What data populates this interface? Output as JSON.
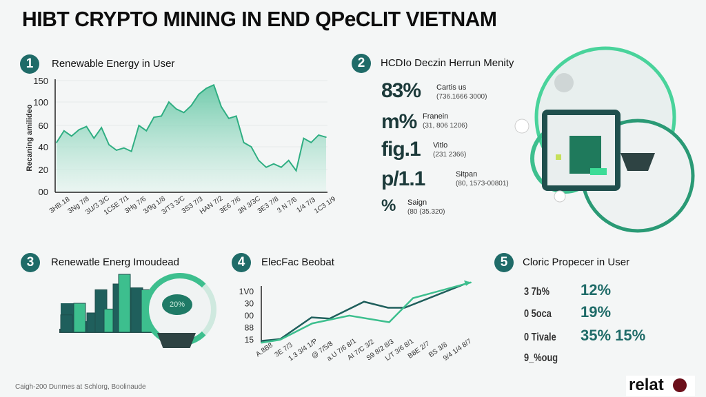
{
  "title": "HIBT CRYPTO MINING IN END QPeCLIT VIETNAM",
  "sections": [
    {
      "number": "1",
      "title": "Renewable Energy in User"
    },
    {
      "number": "2",
      "title": "HCDIo Deczin Herrun Menity"
    },
    {
      "number": "3",
      "title": "Renewatle Energ Imoudead"
    },
    {
      "number": "4",
      "title": "ElecFac Beobat"
    },
    {
      "number": "5",
      "title": "Cloric Propecer in User"
    }
  ],
  "stats": [
    {
      "value": "83%",
      "label": "Cartis us",
      "sub": "(736.1666 3000)"
    },
    {
      "value": "m%",
      "label": "Franein",
      "sub": "(31, 806 1206)"
    },
    {
      "value": "fig.1",
      "label": "Vitlo",
      "sub": "(231 2366)"
    },
    {
      "value": "p/1.1",
      "label": "Sitpan",
      "sub": "(80, 1573-00801)"
    },
    {
      "value": "%",
      "label": "Saign",
      "sub": "(80 (35.320)"
    }
  ],
  "gauge_label": "20%",
  "shares": [
    {
      "label": "3 7b%",
      "values": [
        "12%"
      ]
    },
    {
      "label": "0 5oca",
      "values": [
        "19%"
      ]
    },
    {
      "label": "0 Tivale",
      "values": [
        "35%",
        "15%"
      ]
    },
    {
      "label": "9_%oug",
      "values": []
    }
  ],
  "footer": "Caigh-200 Dunmes at Schlorg, Boolinaude",
  "logo": "relat",
  "colors": {
    "accent": "#1f6b68",
    "green": "#3dbf8e",
    "dark_teal": "#1f5f5c"
  },
  "chart_data": [
    {
      "type": "area",
      "ylabel": "Recaning amilideo",
      "y_ticks": [
        0,
        20,
        40,
        60,
        100,
        150
      ],
      "y_tick_labels": [
        "00",
        "20",
        "40",
        "60",
        "100",
        "150"
      ],
      "x_tick_labels": [
        "3HB.18",
        "3Ng 7/8",
        "3U/3 3/C",
        "1C5E 7/1",
        "3Hg 7/6",
        "3/9g 1/8",
        "3/T3 3/C",
        "3S3 7/3",
        "HAN 7/2",
        "3E6 7/6",
        "3N 3/3C",
        "3E3 7/8",
        "3 N 7/6",
        "1/4 7/3",
        "1C3 1/9"
      ],
      "grid": true,
      "series": [
        {
          "values": [
            44,
            55,
            50,
            56,
            59,
            48,
            58,
            42,
            37,
            39,
            36,
            60,
            55,
            74,
            76,
            100,
            88,
            82,
            94,
            118,
            132,
            140,
            92,
            72,
            76,
            44,
            40,
            28,
            22,
            25,
            22,
            28,
            19,
            48,
            44,
            51,
            49
          ]
        }
      ]
    },
    {
      "type": "line",
      "y_tick_labels": [
        "15",
        "88",
        "00",
        "30",
        "1V0"
      ],
      "x_tick_labels": [
        "A.8B8",
        "3E 7/3",
        "1.3 3/4 1/P",
        "@ 7/5/8",
        "a.U 7/6 8/1",
        "AI 7/C 3/2",
        "S9 8/2 8/3",
        "L/T 3/6 8/1",
        "B8E 2/7",
        "BS 3/8",
        "9/4 1/4 8/7"
      ],
      "series": [
        {
          "color": "#1f5f5c",
          "x": [
            0,
            0.9,
            2.4,
            3.26,
            4.9,
            6.05,
            6.84,
            9.9
          ],
          "values": [
            -0.15,
            0,
            1.8,
            1.7,
            3.1,
            2.6,
            2.6,
            4.7
          ]
        },
        {
          "color": "#3dbf8e",
          "x": [
            0,
            0.9,
            2.43,
            4.2,
            6.1,
            7.24,
            10
          ],
          "values": [
            -0.3,
            -0.05,
            1.3,
            1.95,
            1.4,
            3.4,
            4.7
          ]
        }
      ]
    }
  ]
}
